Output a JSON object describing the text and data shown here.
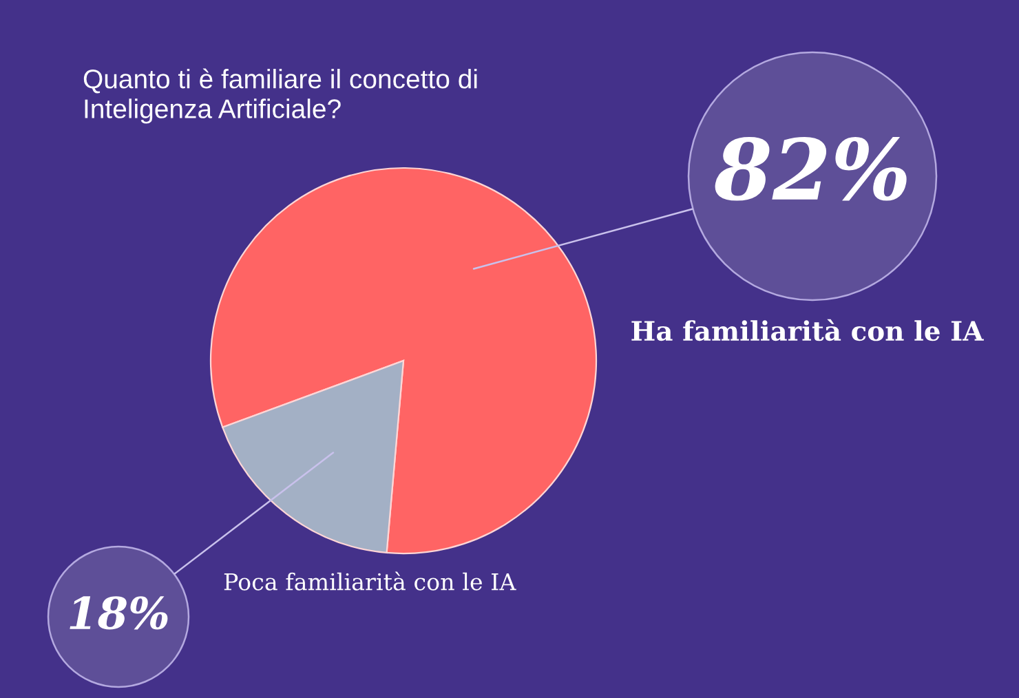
{
  "chart_data": {
    "type": "pie",
    "title": "Quanto ti è familiare il concetto di\nInteligenza Artificiale?",
    "categories": [
      "Ha familiarità con le IA",
      "Poca familiarità con le IA"
    ],
    "values": [
      82,
      18
    ],
    "colors": [
      "#ff6464",
      "#a3b0c5"
    ],
    "value_labels": [
      "82%",
      "18%"
    ]
  }
}
